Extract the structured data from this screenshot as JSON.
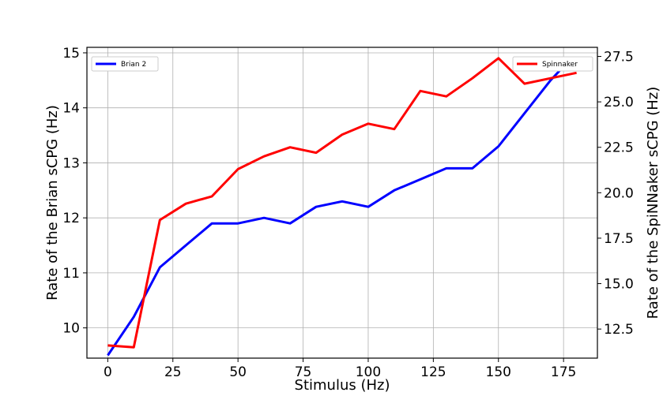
{
  "chart_data": {
    "type": "line",
    "xlabel": "Stimulus (Hz)",
    "ylabel_left": "Rate of the Brian sCPG (Hz)",
    "ylabel_right": "Rate of the SpiNNaker sCPG (Hz)",
    "xlim": [
      -8,
      188
    ],
    "ylim_left": [
      9.45,
      15.1
    ],
    "ylim_right": [
      10.9,
      28.0
    ],
    "x_ticks": [
      "0",
      "25",
      "50",
      "75",
      "100",
      "125",
      "150",
      "175"
    ],
    "y_ticks_left": [
      "10",
      "11",
      "12",
      "13",
      "14",
      "15"
    ],
    "y_ticks_right": [
      "12.5",
      "15.0",
      "17.5",
      "20.0",
      "22.5",
      "25.0",
      "27.5"
    ],
    "grid": true,
    "series": [
      {
        "name": "Brian 2",
        "axis": "left",
        "color": "#0000ff",
        "legend_position": "top-left",
        "x": [
          0,
          10,
          20,
          30,
          40,
          50,
          60,
          70,
          80,
          90,
          100,
          110,
          120,
          130,
          140,
          150,
          160,
          170,
          176
        ],
        "y": [
          9.5,
          10.2,
          11.1,
          11.5,
          11.9,
          11.9,
          12.0,
          11.9,
          12.2,
          12.3,
          12.2,
          12.5,
          12.7,
          12.9,
          12.9,
          13.3,
          13.9,
          14.5,
          14.8
        ]
      },
      {
        "name": "Spinnaker",
        "axis": "right",
        "color": "#ff0000",
        "legend_position": "top-right",
        "x": [
          0,
          10,
          20,
          30,
          40,
          50,
          60,
          70,
          80,
          90,
          100,
          110,
          120,
          130,
          140,
          150,
          160,
          170,
          180
        ],
        "y": [
          11.6,
          11.5,
          18.5,
          19.4,
          19.8,
          21.3,
          22.0,
          22.5,
          22.2,
          23.2,
          23.8,
          23.5,
          25.6,
          25.3,
          26.3,
          27.4,
          26.0,
          26.3,
          26.6
        ]
      }
    ]
  }
}
